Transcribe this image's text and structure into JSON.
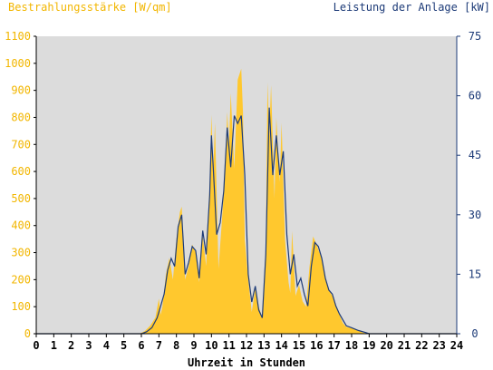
{
  "chart_data": {
    "type": "area",
    "ylabel_left": "Bestrahlungsstärke [W/qm]",
    "ylabel_right": "Leistung der Anlage [kW]",
    "xlabel": "Uhrzeit in Stunden",
    "xlim": [
      0,
      24
    ],
    "ylim_left": [
      0,
      1100
    ],
    "ylim_right": [
      0,
      75
    ],
    "x_ticks": [
      "0",
      "1",
      "2",
      "3",
      "4",
      "5",
      "6",
      "7",
      "8",
      "9",
      "10",
      "11",
      "12",
      "13",
      "14",
      "15",
      "16",
      "17",
      "18",
      "19",
      "20",
      "21",
      "22",
      "23",
      "24"
    ],
    "y_ticks_left": [
      "0",
      "100",
      "200",
      "300",
      "400",
      "500",
      "600",
      "700",
      "800",
      "900",
      "1000",
      "1100"
    ],
    "y_ticks_right": [
      "0",
      "15",
      "30",
      "45",
      "60",
      "75"
    ],
    "grid": false,
    "colors": {
      "irradiance": "#ffc82e",
      "power": "#1d3b78",
      "plot_bg": "#dcdcdc",
      "left_axis_text": "#f2b600"
    },
    "series": [
      {
        "name": "Bestrahlungsstärke [W/qm]",
        "axis": "left",
        "style": "area",
        "x": [
          0,
          5.9,
          6.2,
          6.5,
          6.8,
          7.0,
          7.1,
          7.2,
          7.4,
          7.6,
          7.8,
          8.0,
          8.2,
          8.3,
          8.5,
          8.7,
          8.9,
          9.1,
          9.3,
          9.5,
          9.7,
          9.9,
          10.0,
          10.1,
          10.2,
          10.4,
          10.6,
          10.8,
          10.9,
          11.0,
          11.1,
          11.3,
          11.5,
          11.7,
          11.8,
          11.9,
          12.1,
          12.3,
          12.5,
          12.7,
          12.9,
          13.1,
          13.2,
          13.3,
          13.4,
          13.6,
          13.7,
          13.9,
          14.0,
          14.2,
          14.4,
          14.5,
          14.6,
          14.8,
          15.0,
          15.2,
          15.4,
          15.6,
          15.8,
          16.0,
          16.1,
          16.3,
          16.5,
          16.7,
          16.9,
          17.1,
          17.3,
          17.5,
          17.7,
          18.0,
          18.3,
          18.6,
          18.8,
          19.0,
          24
        ],
        "values": [
          0,
          0,
          10,
          30,
          60,
          130,
          70,
          100,
          220,
          280,
          200,
          350,
          450,
          470,
          200,
          250,
          330,
          300,
          190,
          360,
          250,
          560,
          810,
          600,
          780,
          240,
          420,
          620,
          820,
          700,
          890,
          610,
          940,
          980,
          820,
          350,
          200,
          80,
          170,
          100,
          60,
          330,
          930,
          730,
          920,
          500,
          800,
          560,
          780,
          350,
          190,
          150,
          380,
          140,
          180,
          120,
          100,
          250,
          360,
          330,
          310,
          280,
          200,
          160,
          140,
          100,
          70,
          40,
          25,
          20,
          15,
          5,
          2,
          0,
          0
        ]
      },
      {
        "name": "Leistung der Anlage [kW]",
        "axis": "right",
        "style": "line",
        "x": [
          0,
          6.0,
          6.3,
          6.6,
          6.9,
          7.1,
          7.3,
          7.5,
          7.7,
          7.9,
          8.1,
          8.3,
          8.5,
          8.7,
          8.9,
          9.1,
          9.3,
          9.5,
          9.7,
          9.9,
          10.0,
          10.1,
          10.3,
          10.5,
          10.7,
          10.9,
          11.1,
          11.3,
          11.5,
          11.7,
          11.9,
          12.1,
          12.3,
          12.5,
          12.7,
          12.9,
          13.1,
          13.3,
          13.5,
          13.7,
          13.9,
          14.1,
          14.3,
          14.5,
          14.7,
          14.9,
          15.1,
          15.3,
          15.5,
          15.7,
          15.9,
          16.1,
          16.3,
          16.5,
          16.7,
          16.9,
          17.1,
          17.3,
          17.5,
          17.7,
          18.0,
          18.4,
          18.8,
          19.0,
          24
        ],
        "values": [
          0,
          0,
          0.5,
          1.5,
          4,
          7,
          10,
          16,
          19,
          17,
          27,
          30,
          15,
          18,
          22,
          21,
          14,
          26,
          20,
          35,
          50,
          42,
          25,
          28,
          36,
          52,
          42,
          55,
          53,
          55,
          40,
          15,
          8,
          12,
          6,
          4,
          20,
          57,
          40,
          50,
          40,
          46,
          25,
          15,
          20,
          12,
          14,
          10,
          7,
          17,
          23,
          22,
          19,
          14,
          11,
          10,
          7,
          5,
          3.5,
          2,
          1.5,
          0.8,
          0.3,
          0,
          0
        ]
      }
    ]
  }
}
